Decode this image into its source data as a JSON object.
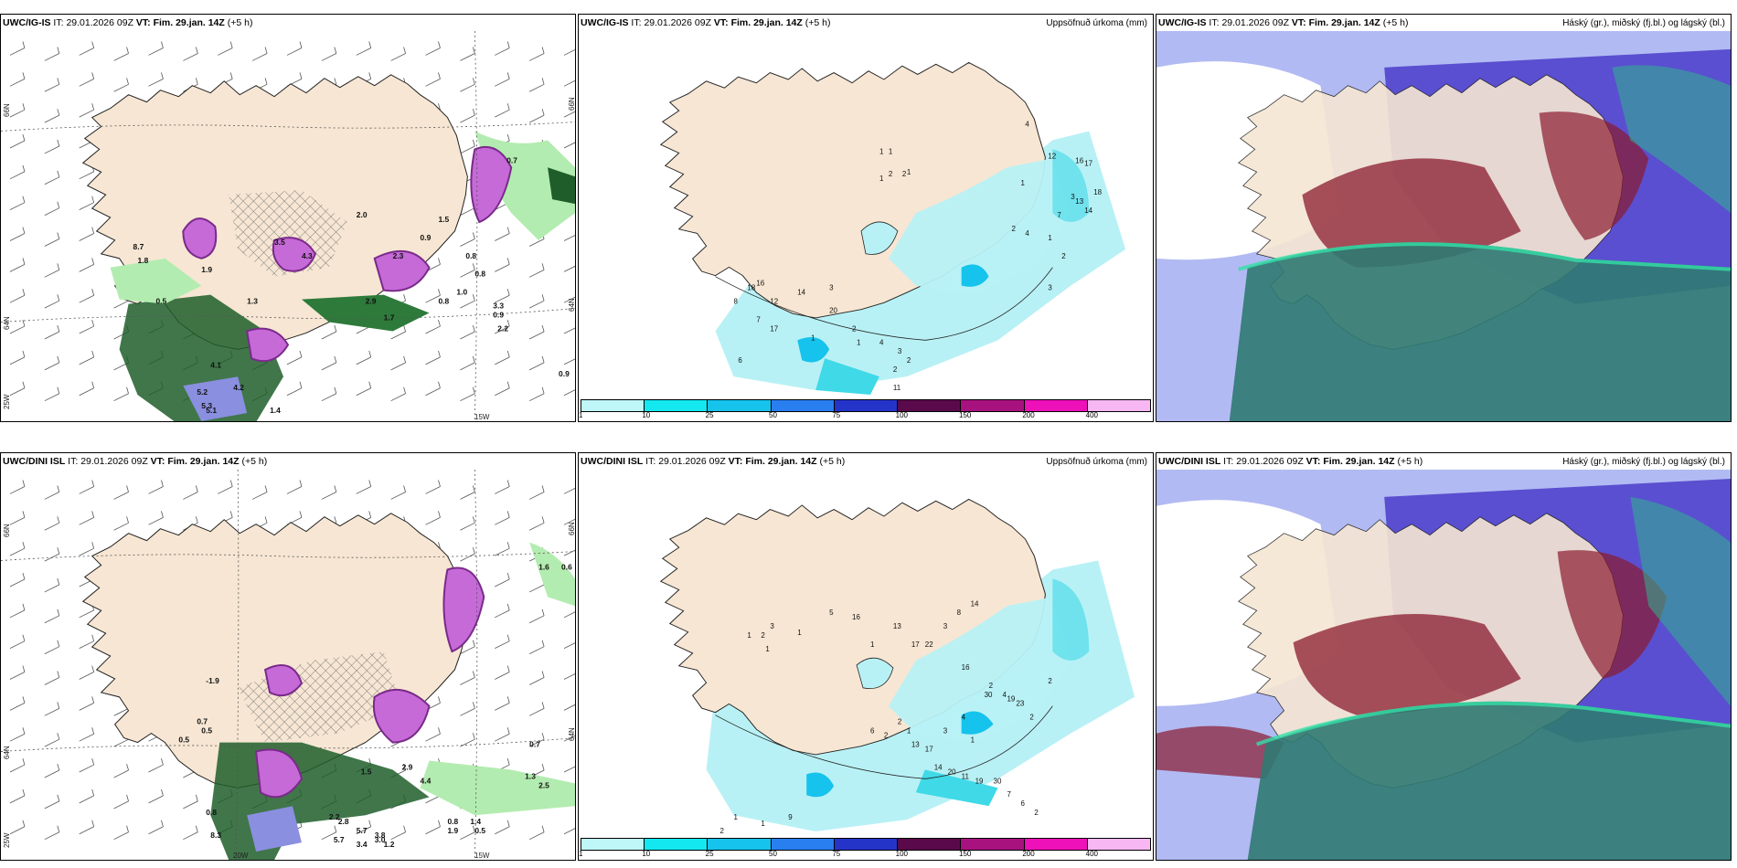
{
  "colors": {
    "land": "#f6e6d3",
    "coast": "#222222",
    "precip_light": "#b8f1f5",
    "precip_mid": "#3fd9e8",
    "magenta": "#c66ad8",
    "dark_green": "#1f5e2a",
    "light_green": "#b3ecb0",
    "cloud_blue": "#5a4fd0",
    "cloud_red": "#8a1b2e",
    "cloud_teal": "#2f7a72",
    "cloud_lightblue": "#aab3f2"
  },
  "colorbar": {
    "labels": [
      "1",
      "10",
      "25",
      "50",
      "75",
      "100",
      "150",
      "200",
      "400"
    ],
    "colors": [
      "#bff6f8",
      "#13e8f0",
      "#16c3ec",
      "#2a7ff0",
      "#2534c8",
      "#5a0a4a",
      "#a8127e",
      "#ee10b8",
      "#f6b7f2"
    ]
  },
  "panels": [
    {
      "model": "UWC/IG-IS",
      "it_label": "IT:",
      "it": "29.01.2026 09Z",
      "vt_label": "VT:",
      "vt": "Fim. 29.jan. 14Z",
      "offset": "(+5 h)",
      "right_title": "",
      "lat_labels": [
        "66N",
        "64N",
        "25W"
      ],
      "lon_labels": [
        "15W"
      ],
      "right_labels": [
        "66N",
        "64N"
      ],
      "values": [
        "8.7",
        "1.8",
        "0.5",
        "1.9",
        "4.1",
        "4.2",
        "5.2",
        "5.3",
        "5.1",
        "1.4",
        "1.0",
        "2.2",
        "0.9",
        "0.8",
        "0.7",
        "1.3",
        "2.9",
        "1.7",
        "3.3",
        "0.8",
        "0.9",
        "0.8",
        "1.5",
        "2.0",
        "3.5",
        "4.3",
        "2.3",
        "0.9"
      ]
    },
    {
      "model": "UWC/IG-IS",
      "it_label": "IT:",
      "it": "29.01.2026 09Z",
      "vt_label": "VT:",
      "vt": "Fim. 29.jan. 14Z",
      "offset": "(+5 h)",
      "right_title": "Uppsöfnuð úrkoma (mm)",
      "values": [
        "1",
        "1",
        "2",
        "2",
        "1",
        "1",
        "4",
        "12",
        "16",
        "17",
        "3",
        "7",
        "13",
        "14",
        "1",
        "18",
        "2",
        "4",
        "1",
        "2",
        "3",
        "14",
        "12",
        "16",
        "18",
        "20",
        "2",
        "1",
        "4",
        "3",
        "2",
        "2",
        "11",
        "6",
        "8",
        "7",
        "17",
        "1",
        "3"
      ]
    },
    {
      "model": "UWC/IG-IS",
      "it_label": "IT:",
      "it": "29.01.2026 09Z",
      "vt_label": "VT:",
      "vt": "Fim. 29.jan. 14Z",
      "offset": "(+5 h)",
      "right_title": "Háský (gr.), miðský (fj.bl.) og lágský (bl.)"
    },
    {
      "model": "UWC/DINI ISL",
      "it_label": "IT:",
      "it": "29.01.2026 09Z",
      "vt_label": "VT:",
      "vt": "Fim. 29.jan. 14Z",
      "offset": "(+5 h)",
      "right_title": "",
      "lat_labels": [
        "66N",
        "64N",
        "25W"
      ],
      "lon_labels": [
        "20W",
        "15W"
      ],
      "right_labels": [
        "66N",
        "64N"
      ],
      "values": [
        "-1.9",
        "0.7",
        "0.5",
        "0.5",
        "0.8",
        "8.3",
        "3.0",
        "3.8",
        "5.7",
        "2.8",
        "2.2",
        "5.7",
        "3.4",
        "1.2",
        "0.8",
        "1.9",
        "1.4",
        "0.5",
        "0.7",
        "0.6",
        "1.6",
        "1.3",
        "2.5",
        "1.5",
        "2.9",
        "4.4"
      ]
    },
    {
      "model": "UWC/DINI ISL",
      "it_label": "IT:",
      "it": "29.01.2026 09Z",
      "vt_label": "VT:",
      "vt": "Fim. 29.jan. 14Z",
      "offset": "(+5 h)",
      "right_title": "Uppsöfnuð úrkoma (mm)",
      "values": [
        "1",
        "2",
        "3",
        "1",
        "1",
        "5",
        "16",
        "1",
        "13",
        "17",
        "22",
        "3",
        "8",
        "14",
        "16",
        "2",
        "4",
        "4",
        "3",
        "1",
        "30",
        "19",
        "23",
        "2",
        "2",
        "6",
        "2",
        "2",
        "1",
        "13",
        "17",
        "14",
        "20",
        "11",
        "19",
        "30",
        "7",
        "6",
        "2",
        "9",
        "1",
        "1",
        "2"
      ]
    },
    {
      "model": "UWC/DINI ISL",
      "it_label": "IT:",
      "it": "29.01.2026 09Z",
      "vt_label": "VT:",
      "vt": "Fim. 29.jan. 14Z",
      "offset": "(+5 h)",
      "right_title": "Háský (gr.), miðský (fj.bl.) og lágský (bl.)"
    }
  ]
}
